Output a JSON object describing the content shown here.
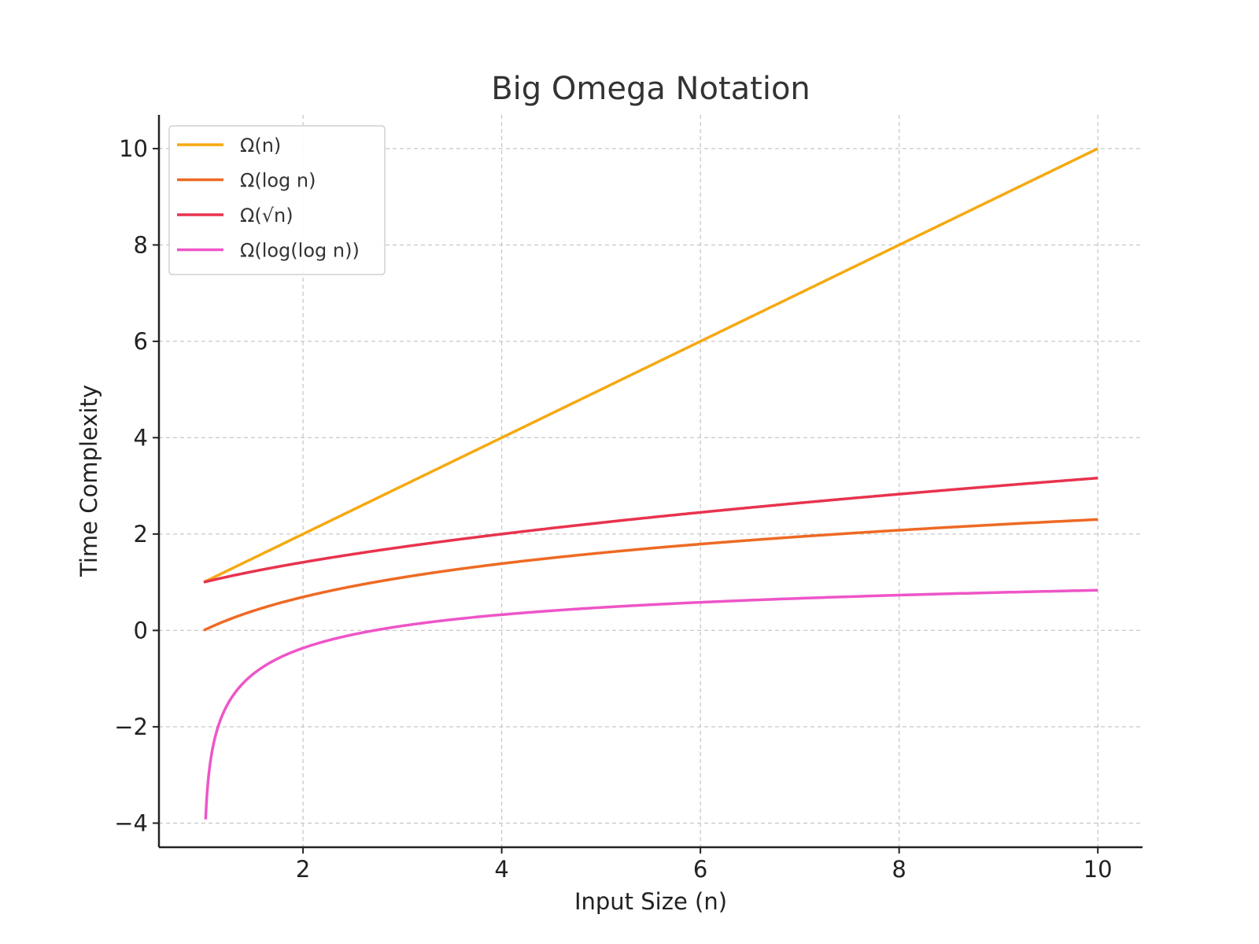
{
  "chart_data": {
    "type": "line",
    "title": "Big Omega Notation",
    "xlabel": "Input Size (n)",
    "ylabel": "Time Complexity",
    "xlim": [
      0.55,
      10.45
    ],
    "ylim": [
      -4.5,
      10.7
    ],
    "xticks": [
      2,
      4,
      6,
      8,
      10
    ],
    "xtick_labels": [
      "2",
      "4",
      "6",
      "8",
      "10"
    ],
    "yticks": [
      -4,
      -2,
      0,
      2,
      4,
      6,
      8,
      10
    ],
    "ytick_labels": [
      "−4",
      "−2",
      "0",
      "2",
      "4",
      "6",
      "8",
      "10"
    ],
    "grid": true,
    "legend_position": "top-left",
    "x_domain": [
      1.001,
      10
    ],
    "series": [
      {
        "name": "Ω(n)",
        "func": "n",
        "color": "#F5A911",
        "x": [
          1,
          2,
          4,
          6,
          8,
          10
        ],
        "values": [
          1,
          2,
          4,
          6,
          8,
          10
        ]
      },
      {
        "name": "Ω(log n)",
        "func": "ln",
        "color": "#EE6A24",
        "x": [
          1,
          2,
          4,
          6,
          8,
          10
        ],
        "values": [
          0,
          0.69,
          1.39,
          1.79,
          2.08,
          2.3
        ]
      },
      {
        "name": "Ω(√n)",
        "func": "sqrt",
        "color": "#E8334E",
        "x": [
          1,
          2,
          4,
          6,
          8,
          10
        ],
        "values": [
          1,
          1.41,
          2,
          2.45,
          2.83,
          3.16
        ]
      },
      {
        "name": "Ω(log(log n))",
        "func": "lnln",
        "color": "#EE55C8",
        "x": [
          1.02,
          2,
          4,
          6,
          8,
          10
        ],
        "values": [
          -3.8,
          -0.37,
          0.33,
          0.58,
          0.73,
          0.83
        ]
      }
    ]
  }
}
